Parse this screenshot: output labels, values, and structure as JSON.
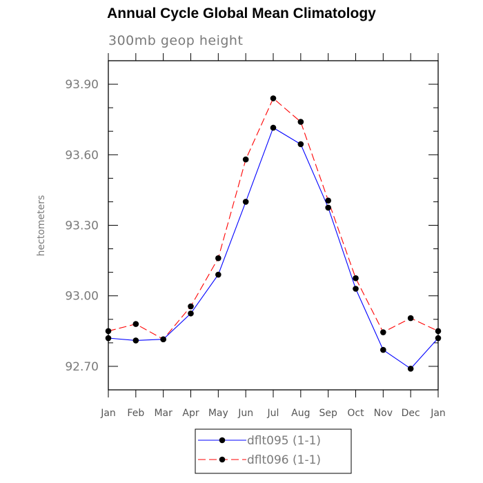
{
  "chart_data": {
    "type": "line",
    "title": "Annual Cycle Global Mean Climatology",
    "subtitle": "300mb geop height",
    "xlabel": "",
    "ylabel": "hectometers",
    "categories": [
      "Jan",
      "Feb",
      "Mar",
      "Apr",
      "May",
      "Jun",
      "Jul",
      "Aug",
      "Sep",
      "Oct",
      "Nov",
      "Dec",
      "Jan"
    ],
    "yticks": [
      "93.90",
      "93.60",
      "93.30",
      "93.00",
      "92.70"
    ],
    "ylim": [
      92.6,
      94.0
    ],
    "series": [
      {
        "name": "dflt095 (1-1)",
        "color": "#0000ff",
        "dash": "solid",
        "marker": "filled-circle",
        "values": [
          92.82,
          92.81,
          92.815,
          92.925,
          93.09,
          93.4,
          93.715,
          93.645,
          93.375,
          93.03,
          92.77,
          92.69,
          92.82
        ]
      },
      {
        "name": "dflt096 (1-1)",
        "color": "#ff0000",
        "dash": "dashed",
        "marker": "filled-circle",
        "values": [
          92.85,
          92.88,
          92.815,
          92.955,
          93.16,
          93.58,
          93.84,
          93.74,
          93.405,
          93.075,
          92.845,
          92.905,
          92.85
        ]
      }
    ],
    "grid": false,
    "legend": "bottom-center"
  }
}
